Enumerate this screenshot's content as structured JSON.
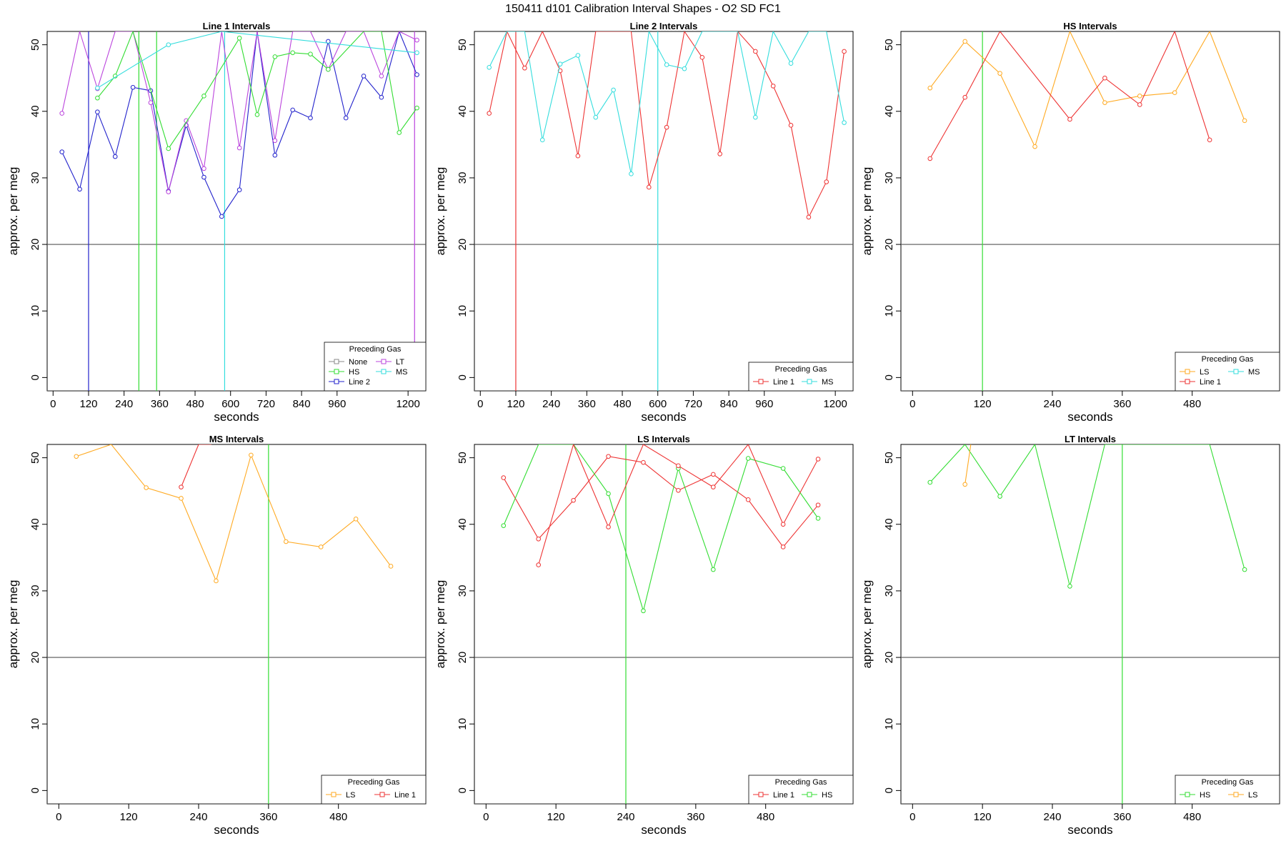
{
  "figure_title": "150411   d101   Calibration Interval Shapes - O2 SD FC1",
  "colors": {
    "None": "#888888",
    "HS": "#33dd33",
    "Line 2": "#2222cc",
    "LT": "#bb44dd",
    "MS": "#33dddd",
    "Line 1": "#ee3333",
    "LS": "#ffaa22",
    "hline": "#555555"
  },
  "chart_data": [
    {
      "type": "line",
      "title": "Line 1 Intervals",
      "xlabel": "seconds",
      "ylabel": "approx. per meg",
      "xlim": [
        -20,
        1260
      ],
      "ylim": [
        -2,
        52
      ],
      "xticks": [
        0,
        120,
        240,
        360,
        480,
        600,
        720,
        840,
        960,
        1200
      ],
      "yticks": [
        0,
        10,
        20,
        30,
        40,
        50
      ],
      "hline": 20,
      "legend": {
        "title": "Preceding Gas",
        "entries": [
          "None",
          "LT",
          "HS",
          "MS",
          "Line 2"
        ],
        "cols": 2,
        "position": "bottom-right"
      },
      "series": [
        {
          "name": "None",
          "x": [],
          "y": []
        },
        {
          "name": "Line 2",
          "x": [
            30,
            90,
            150,
            210,
            270,
            330,
            390,
            450,
            510,
            570,
            630,
            690,
            750,
            810,
            870,
            930,
            990,
            1050,
            1110,
            1170,
            1230
          ],
          "y": [
            33.9,
            28.3,
            39.9,
            33.2,
            43.6,
            43.1,
            28.0,
            37.9,
            30.1,
            24.2,
            28.2,
            52,
            33.4,
            40.2,
            39.0,
            50.5,
            39.0,
            45.3,
            42.1,
            52,
            45.5
          ]
        },
        {
          "name": "LT",
          "x": [
            30,
            90,
            150,
            210,
            270,
            330,
            390,
            450,
            510,
            570,
            630,
            690,
            750,
            810,
            870,
            930,
            990,
            1050,
            1110,
            1170,
            1230
          ],
          "y": [
            39.7,
            52,
            43.4,
            52,
            52,
            41.3,
            27.9,
            38.6,
            31.4,
            52,
            34.5,
            52,
            35.6,
            52,
            52,
            46.3,
            52,
            52,
            45.3,
            52,
            50.7
          ]
        },
        {
          "name": "HS",
          "x": [
            150,
            210,
            270,
            390,
            510,
            630,
            690,
            750,
            810,
            870,
            930,
            1050,
            1110,
            1170,
            1230
          ],
          "y": [
            42.0,
            45.3,
            52,
            34.4,
            42.3,
            51.0,
            39.5,
            48.2,
            48.8,
            48.6,
            46.3,
            52,
            52,
            36.8,
            40.5
          ]
        },
        {
          "name": "MS",
          "x": [
            150,
            390,
            570,
            1230
          ],
          "y": [
            43.5,
            50.0,
            52,
            48.8
          ]
        }
      ],
      "vlines": [
        {
          "x": 120,
          "series": "Line 2"
        },
        {
          "x": 290,
          "series": "HS"
        },
        {
          "x": 350,
          "series": "HS"
        },
        {
          "x": 580,
          "series": "MS"
        },
        {
          "x": 1222,
          "series": "LT"
        }
      ]
    },
    {
      "type": "line",
      "title": "Line 2 Intervals",
      "xlabel": "seconds",
      "ylabel": "approx. per meg",
      "xlim": [
        -20,
        1260
      ],
      "ylim": [
        -2,
        52
      ],
      "xticks": [
        0,
        120,
        240,
        360,
        480,
        600,
        720,
        840,
        960,
        1200
      ],
      "yticks": [
        0,
        10,
        20,
        30,
        40,
        50
      ],
      "hline": 20,
      "legend": {
        "title": "Preceding Gas",
        "entries": [
          "Line 1",
          "MS"
        ],
        "cols": 2,
        "position": "bottom-right"
      },
      "series": [
        {
          "name": "Line 1",
          "x": [
            30,
            90,
            150,
            210,
            270,
            330,
            390,
            450,
            510,
            570,
            630,
            690,
            750,
            810,
            870,
            930,
            990,
            1050,
            1110,
            1170,
            1230
          ],
          "y": [
            39.7,
            52,
            46.5,
            52,
            46.1,
            33.3,
            52,
            52,
            52,
            28.6,
            37.6,
            52,
            48.1,
            33.6,
            52,
            49.0,
            43.8,
            37.9,
            24.1,
            29.4,
            49.0
          ]
        },
        {
          "name": "MS",
          "x": [
            30,
            90,
            150,
            210,
            270,
            330,
            390,
            450,
            510,
            570,
            630,
            690,
            750,
            810,
            870,
            930,
            990,
            1050,
            1110,
            1170,
            1230
          ],
          "y": [
            46.6,
            52,
            52,
            35.7,
            47.1,
            48.4,
            39.1,
            43.2,
            30.6,
            52,
            47.0,
            46.4,
            52,
            52,
            52,
            39.1,
            52,
            47.2,
            52,
            52,
            38.3
          ]
        }
      ],
      "vlines": [
        {
          "x": 120,
          "series": "Line 1"
        },
        {
          "x": 600,
          "series": "MS"
        }
      ]
    },
    {
      "type": "line",
      "title": "HS Intervals",
      "xlabel": "seconds",
      "ylabel": "approx. per meg",
      "xlim": [
        -20,
        630
      ],
      "ylim": [
        -2,
        52
      ],
      "xticks": [
        0,
        120,
        240,
        360,
        480
      ],
      "yticks": [
        0,
        10,
        20,
        30,
        40,
        50
      ],
      "hline": 20,
      "legend": {
        "title": "Preceding Gas",
        "entries": [
          "LS",
          "MS",
          "Line 1"
        ],
        "cols": 2,
        "position": "bottom-right"
      },
      "series": [
        {
          "name": "LS",
          "x": [
            30,
            90,
            150,
            210,
            270,
            330,
            390,
            450,
            510,
            570
          ],
          "y": [
            43.5,
            50.5,
            45.7,
            34.7,
            52,
            41.3,
            42.3,
            42.8,
            52,
            38.6
          ]
        },
        {
          "name": "Line 1",
          "x": [
            30,
            90,
            150,
            270,
            330,
            390,
            450,
            510
          ],
          "y": [
            32.9,
            42.1,
            52,
            38.8,
            45.0,
            41.0,
            52,
            35.7
          ]
        }
      ],
      "vlines": [
        {
          "x": 120,
          "series": "HS"
        }
      ]
    },
    {
      "type": "line",
      "title": "MS Intervals",
      "xlabel": "seconds",
      "ylabel": "approx. per meg",
      "xlim": [
        -20,
        630
      ],
      "ylim": [
        -2,
        52
      ],
      "xticks": [
        0,
        120,
        240,
        360,
        480
      ],
      "yticks": [
        0,
        10,
        20,
        30,
        40,
        50
      ],
      "hline": 20,
      "legend": {
        "title": "Preceding Gas",
        "entries": [
          "LS",
          "Line 1"
        ],
        "cols": 2,
        "position": "bottom-right"
      },
      "series": [
        {
          "name": "LS",
          "x": [
            30,
            90,
            150,
            210,
            270,
            330,
            390,
            450,
            510,
            570
          ],
          "y": [
            50.2,
            52,
            45.5,
            43.9,
            31.5,
            50.4,
            37.4,
            36.6,
            40.8,
            33.7
          ]
        },
        {
          "name": "Line 1",
          "x": [
            210,
            240,
            262
          ],
          "y": [
            45.6,
            52,
            52
          ]
        }
      ],
      "vlines": [
        {
          "x": 360,
          "series": "HS"
        }
      ]
    },
    {
      "type": "line",
      "title": "LS Intervals",
      "xlabel": "seconds",
      "ylabel": "approx. per meg",
      "xlim": [
        -20,
        630
      ],
      "ylim": [
        -2,
        52
      ],
      "xticks": [
        0,
        120,
        240,
        360,
        480
      ],
      "yticks": [
        0,
        10,
        20,
        30,
        40,
        50
      ],
      "hline": 20,
      "legend": {
        "title": "Preceding Gas",
        "entries": [
          "Line 1",
          "HS"
        ],
        "cols": 2,
        "position": "bottom-right"
      },
      "series": [
        {
          "name": "Line 1",
          "x": [
            30,
            90,
            150,
            210,
            270,
            330,
            390,
            450,
            510,
            570
          ],
          "y": [
            47.0,
            37.8,
            43.6,
            50.2,
            49.3,
            45.1,
            47.5,
            43.7,
            36.6,
            42.9
          ]
        },
        {
          "name": "HS",
          "x": [
            30,
            90,
            150,
            210,
            270,
            330,
            390,
            450,
            510,
            570
          ],
          "y": [
            39.8,
            52,
            52,
            44.6,
            27.0,
            48.4,
            33.2,
            49.9,
            48.4,
            40.9
          ]
        },
        {
          "name": "Line 1",
          "x": [
            90,
            150,
            210,
            270,
            330,
            390,
            450,
            510,
            570
          ],
          "y": [
            33.9,
            52,
            39.6,
            52,
            48.8,
            45.6,
            52,
            40.0,
            49.8
          ]
        }
      ],
      "vlines": [
        {
          "x": 240,
          "series": "HS"
        }
      ]
    },
    {
      "type": "line",
      "title": "LT Intervals",
      "xlabel": "seconds",
      "ylabel": "approx. per meg",
      "xlim": [
        -20,
        630
      ],
      "ylim": [
        -2,
        52
      ],
      "xticks": [
        0,
        120,
        240,
        360,
        480
      ],
      "yticks": [
        0,
        10,
        20,
        30,
        40,
        50
      ],
      "hline": 20,
      "legend": {
        "title": "Preceding Gas",
        "entries": [
          "HS",
          "LS"
        ],
        "cols": 2,
        "position": "bottom-right"
      },
      "series": [
        {
          "name": "HS",
          "x": [
            30,
            90,
            150,
            210,
            270,
            330,
            390,
            450,
            510,
            570
          ],
          "y": [
            46.3,
            52,
            44.2,
            52,
            30.7,
            52,
            52,
            52,
            52,
            33.2
          ]
        },
        {
          "name": "LS",
          "x": [
            90,
            100
          ],
          "y": [
            46.0,
            52
          ]
        }
      ],
      "vlines": [
        {
          "x": 360,
          "series": "HS"
        }
      ]
    }
  ]
}
